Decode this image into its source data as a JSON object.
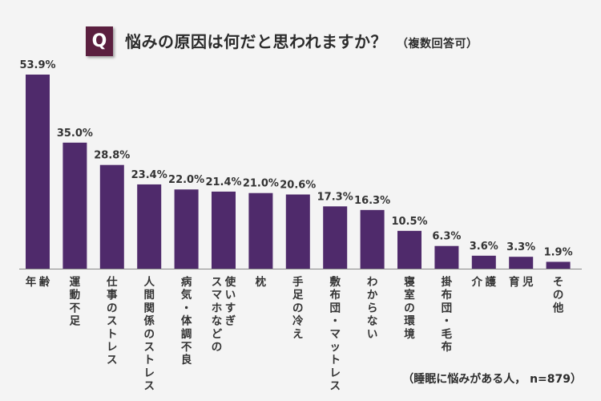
{
  "header": {
    "q_label": "Q",
    "title": "悩みの原因は何だと思われますか？",
    "subtitle": "（複数回答可）"
  },
  "footnote": "（睡眠に悩みがある人， n=879）",
  "colors": {
    "bar": "#4f2a6b",
    "q_box": "#5b1f3f",
    "axis": "#888888"
  },
  "chart_data": {
    "type": "bar",
    "title": "悩みの原因は何だと思われますか？",
    "categories": [
      "年齢",
      "運動不足",
      "仕事のストレス",
      "人間関係のストレス",
      "病気・体調不良",
      "スマホなどの使いすぎ",
      "枕",
      "手足の冷え",
      "敷布団・マットレス",
      "わからない",
      "寝室の環境",
      "掛布団・毛布",
      "介護",
      "育児",
      "その他"
    ],
    "values": [
      53.9,
      35.0,
      28.8,
      23.4,
      22.0,
      21.4,
      21.0,
      20.6,
      17.3,
      16.3,
      10.5,
      6.3,
      3.6,
      3.3,
      1.9
    ],
    "value_labels": [
      "53.9%",
      "35.0%",
      "28.8%",
      "23.4%",
      "22.0%",
      "21.4%",
      "21.0%",
      "20.6%",
      "17.3%",
      "16.3%",
      "10.5%",
      "6.3%",
      "3.6%",
      "3.3%",
      "1.9%"
    ],
    "category_lines": [
      [
        "年",
        "齢"
      ],
      [
        "運動不足"
      ],
      [
        "仕事のストレス"
      ],
      [
        "人間関係のストレス"
      ],
      [
        "病気・体調不良"
      ],
      [
        "スマホなどの",
        "使いすぎ"
      ],
      [
        "枕"
      ],
      [
        "手足の冷え"
      ],
      [
        "敷布団・マットレス"
      ],
      [
        "わからない"
      ],
      [
        "寝室の環境"
      ],
      [
        "掛布団・毛布"
      ],
      [
        "介",
        "護"
      ],
      [
        "育",
        "児"
      ],
      [
        "その他"
      ]
    ],
    "unit": "%",
    "ylim": [
      0,
      60
    ],
    "grid": false,
    "legend": "none"
  }
}
